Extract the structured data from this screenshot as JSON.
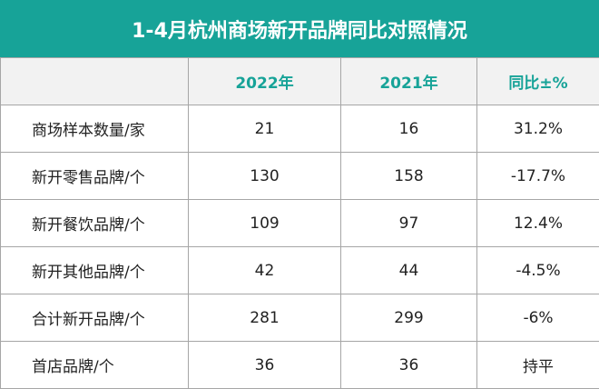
{
  "header": {
    "title": "1-4月杭州商场新开品牌同比对照情况"
  },
  "table": {
    "columns": [
      "",
      "2022年",
      "2021年",
      "同比±%"
    ],
    "rows": [
      [
        "商场样本数量/家",
        "21",
        "16",
        "31.2%"
      ],
      [
        "新开零售品牌/个",
        "130",
        "158",
        "-17.7%"
      ],
      [
        "新开餐饮品牌/个",
        "109",
        "97",
        "12.4%"
      ],
      [
        "新开其他品牌/个",
        "42",
        "44",
        "-4.5%"
      ],
      [
        "合计新开品牌/个",
        "281",
        "299",
        "-6%"
      ],
      [
        "首店品牌/个",
        "36",
        "36",
        "持平"
      ]
    ]
  }
}
